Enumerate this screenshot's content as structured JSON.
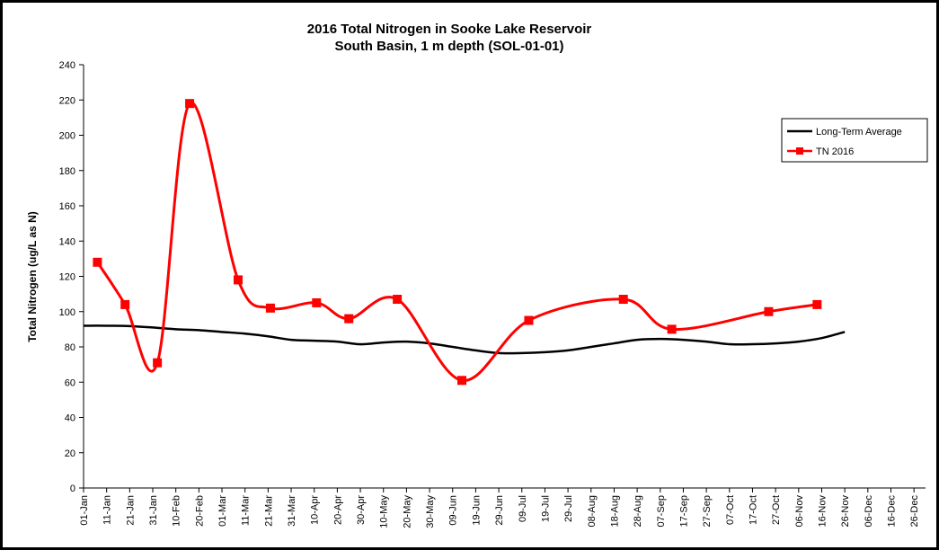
{
  "chart_data": {
    "type": "line",
    "title": [
      "2016 Total Nitrogen in Sooke Lake Reservoir",
      "South Basin, 1 m depth (SOL-01-01)"
    ],
    "y_label": "Total Nitrogen (ug/L as N)",
    "xlim": [
      0,
      365
    ],
    "xticks": [
      {
        "value": 0,
        "label": "01-Jan"
      },
      {
        "value": 10,
        "label": "11-Jan"
      },
      {
        "value": 20,
        "label": "21-Jan"
      },
      {
        "value": 30,
        "label": "31-Jan"
      },
      {
        "value": 40,
        "label": "10-Feb"
      },
      {
        "value": 50,
        "label": "20-Feb"
      },
      {
        "value": 60,
        "label": "01-Mar"
      },
      {
        "value": 70,
        "label": "11-Mar"
      },
      {
        "value": 80,
        "label": "21-Mar"
      },
      {
        "value": 90,
        "label": "31-Mar"
      },
      {
        "value": 100,
        "label": "10-Apr"
      },
      {
        "value": 110,
        "label": "20-Apr"
      },
      {
        "value": 120,
        "label": "30-Apr"
      },
      {
        "value": 130,
        "label": "10-May"
      },
      {
        "value": 140,
        "label": "20-May"
      },
      {
        "value": 150,
        "label": "30-May"
      },
      {
        "value": 160,
        "label": "09-Jun"
      },
      {
        "value": 170,
        "label": "19-Jun"
      },
      {
        "value": 180,
        "label": "29-Jun"
      },
      {
        "value": 190,
        "label": "09-Jul"
      },
      {
        "value": 200,
        "label": "19-Jul"
      },
      {
        "value": 210,
        "label": "29-Jul"
      },
      {
        "value": 220,
        "label": "08-Aug"
      },
      {
        "value": 230,
        "label": "18-Aug"
      },
      {
        "value": 240,
        "label": "28-Aug"
      },
      {
        "value": 250,
        "label": "07-Sep"
      },
      {
        "value": 260,
        "label": "17-Sep"
      },
      {
        "value": 270,
        "label": "27-Sep"
      },
      {
        "value": 280,
        "label": "07-Oct"
      },
      {
        "value": 290,
        "label": "17-Oct"
      },
      {
        "value": 300,
        "label": "27-Oct"
      },
      {
        "value": 310,
        "label": "06-Nov"
      },
      {
        "value": 320,
        "label": "16-Nov"
      },
      {
        "value": 330,
        "label": "26-Nov"
      },
      {
        "value": 340,
        "label": "06-Dec"
      },
      {
        "value": 350,
        "label": "16-Dec"
      },
      {
        "value": 360,
        "label": "26-Dec"
      }
    ],
    "ylim": [
      0,
      240
    ],
    "yticks": [
      0,
      20,
      40,
      60,
      80,
      100,
      120,
      140,
      160,
      180,
      200,
      220,
      240
    ],
    "legend": "upper right",
    "series": [
      {
        "name": "Long-Term Average",
        "color": "#000000",
        "marker": "none",
        "x": [
          0,
          10,
          20,
          30,
          40,
          50,
          60,
          70,
          80,
          90,
          100,
          110,
          120,
          130,
          140,
          150,
          160,
          170,
          180,
          190,
          200,
          210,
          220,
          230,
          240,
          250,
          260,
          270,
          280,
          290,
          300,
          310,
          320,
          330
        ],
        "values": [
          92,
          92,
          91.8,
          91,
          90,
          89.5,
          88.5,
          87.5,
          86,
          84,
          83.5,
          83,
          81.5,
          82.5,
          83,
          82,
          80,
          78,
          76.5,
          76.5,
          77,
          78,
          80,
          82,
          84,
          84.5,
          84,
          83,
          81.5,
          81.5,
          82,
          83,
          85,
          88.5
        ]
      },
      {
        "name": "TN 2016",
        "color": "#ff0000",
        "marker": "square",
        "x": [
          6,
          18,
          32,
          46,
          67,
          81,
          101,
          115,
          136,
          164,
          193,
          234,
          255,
          297,
          318
        ],
        "values": [
          128,
          104,
          71,
          218,
          118,
          102,
          105,
          96,
          107,
          61,
          95,
          107,
          90,
          100,
          104
        ]
      }
    ]
  }
}
